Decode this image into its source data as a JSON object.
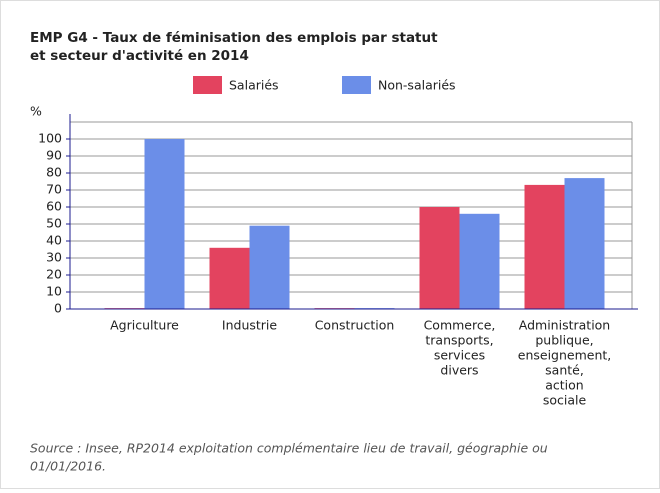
{
  "chart_data": {
    "type": "bar",
    "title": [
      "EMP G4 - Taux de féminisation des emplois par statut",
      "et secteur d'activité en 2014"
    ],
    "y_label": "%",
    "categories": [
      [
        "Agriculture"
      ],
      [
        "Industrie"
      ],
      [
        "Construction"
      ],
      [
        "Commerce,",
        "transports,",
        "services",
        "divers"
      ],
      [
        "Administration",
        "publique,",
        "enseignement,",
        "santé,",
        "action",
        "sociale"
      ]
    ],
    "series": [
      {
        "name": "Salariés",
        "color": "#e3435f",
        "values": [
          0.5,
          36,
          0.5,
          60,
          73
        ]
      },
      {
        "name": "Non-salariés",
        "color": "#6b8ee8",
        "values": [
          100,
          49,
          0.5,
          56,
          77
        ]
      }
    ],
    "ylim": [
      0,
      110
    ],
    "yticks": [
      0,
      10,
      20,
      30,
      40,
      50,
      60,
      70,
      80,
      90,
      100
    ],
    "grid": true,
    "source": [
      "Source : Insee, RP2014 exploitation complémentaire lieu de travail, géographie ou",
      "01/01/2016."
    ]
  }
}
